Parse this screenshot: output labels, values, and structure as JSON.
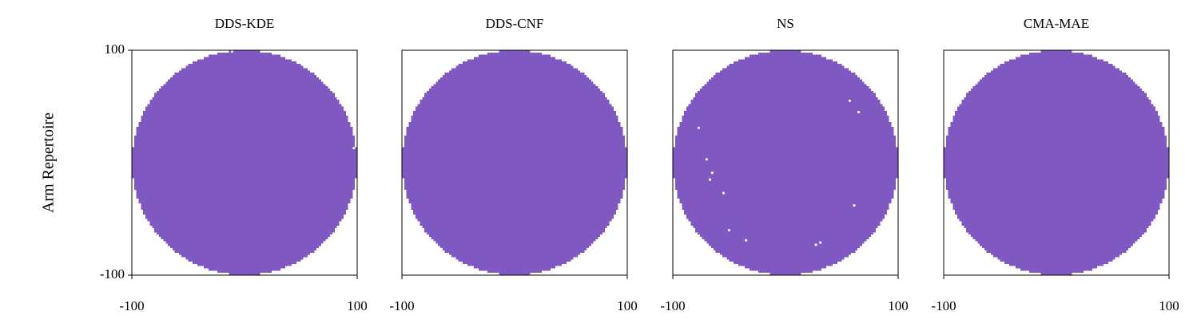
{
  "chart_data": [
    {
      "type": "heatmap",
      "title": "DDS-KDE",
      "ylabel": "Arm Repertoire",
      "color": "#7f58c2",
      "xlim": [
        -100,
        100
      ],
      "ylim": [
        -100,
        100
      ],
      "xticks": [
        -100,
        100
      ],
      "yticks": [
        -100,
        100
      ],
      "radius": 100,
      "cell": 2,
      "empty": {
        "x": [
          -11,
          -100,
          97
        ],
        "y": [
          99,
          17,
          13
        ]
      }
    },
    {
      "type": "heatmap",
      "title": "DDS-CNF",
      "color": "#7f58c2",
      "xlim": [
        -100,
        100
      ],
      "ylim": [
        -100,
        100
      ],
      "xticks": [
        -100,
        100
      ],
      "radius": 100,
      "cell": 2,
      "empty": {
        "x": [],
        "y": []
      }
    },
    {
      "type": "heatmap",
      "title": "NS",
      "color": "#7f58c2",
      "xlim": [
        -100,
        100
      ],
      "ylim": [
        -100,
        100
      ],
      "xticks": [
        -100,
        100
      ],
      "radius": 100,
      "cell": 2,
      "empty": {
        "x": [
          57,
          65,
          -77,
          -70,
          -65,
          -67,
          -55,
          61,
          -50,
          -35,
          27,
          31
        ],
        "y": [
          55,
          45,
          31,
          3,
          -9,
          -15,
          -27,
          -38,
          -60,
          -69,
          -73,
          -71
        ]
      }
    },
    {
      "type": "heatmap",
      "title": "CMA-MAE",
      "color": "#7f58c2",
      "xlim": [
        -100,
        100
      ],
      "ylim": [
        -100,
        100
      ],
      "xticks": [
        -100,
        100
      ],
      "radius": 100,
      "cell": 2,
      "empty": {
        "x": [],
        "y": []
      }
    }
  ]
}
